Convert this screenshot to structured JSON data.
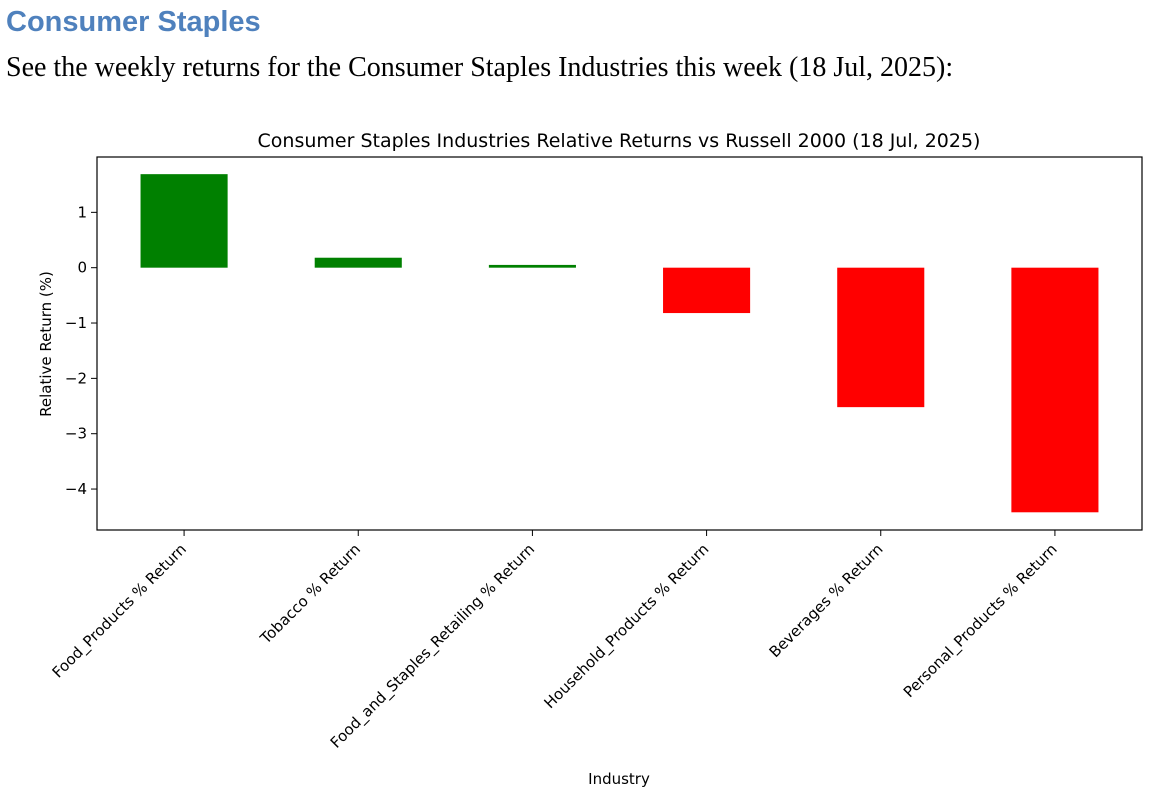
{
  "document": {
    "heading": "Consumer Staples",
    "intro": "See the weekly returns for the Consumer Staples Industries this week (18 Jul, 2025):"
  },
  "chart_data": {
    "type": "bar",
    "title": "Consumer Staples Industries Relative Returns vs Russell 2000 (18 Jul, 2025)",
    "xlabel": "Industry",
    "ylabel": "Relative Return (%)",
    "categories": [
      "Food_Products % Return",
      "Tobacco % Return",
      "Food_and_Staples_Retailing % Return",
      "Household_Products % Return",
      "Beverages % Return",
      "Personal_Products % Return"
    ],
    "values": [
      1.69,
      0.18,
      0.05,
      -0.82,
      -2.52,
      -4.42
    ],
    "ylim": [
      -4.74,
      2.0
    ],
    "yticks": [
      1,
      0,
      -1,
      -2,
      -3,
      -4
    ],
    "ytick_labels": [
      "1",
      "0",
      "−1",
      "−2",
      "−3",
      "−4"
    ],
    "grid": false,
    "colors": {
      "positive": "#008000",
      "negative": "#ff0000"
    }
  }
}
